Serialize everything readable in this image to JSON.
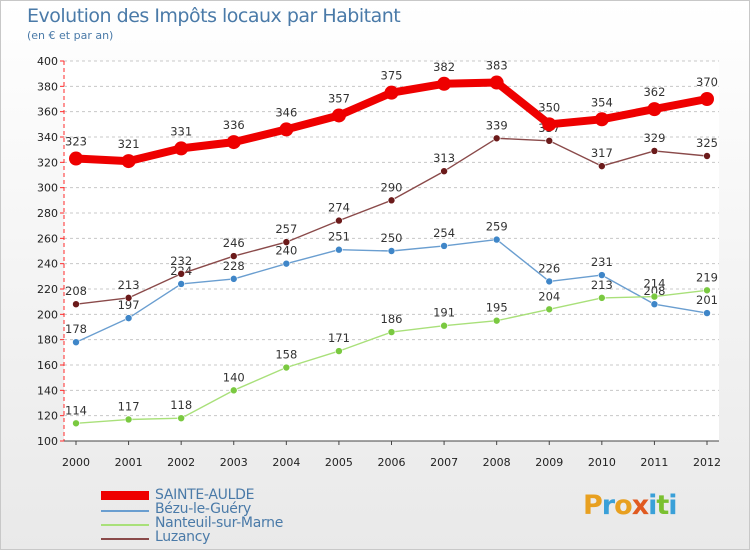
{
  "header": {
    "title": "Evolution des Impôts locaux par Habitant",
    "subtitle": "(en € et par an)"
  },
  "logo": {
    "text": "Proxiti",
    "colors": [
      "#e8b020",
      "#3aa0d8",
      "#e05a20",
      "#7ac030"
    ]
  },
  "chart_data": {
    "type": "line",
    "title": "Evolution des Impôts locaux par Habitant",
    "subtitle": "(en € et par an)",
    "xlabel": "",
    "ylabel": "",
    "x": [
      2000,
      2001,
      2002,
      2003,
      2004,
      2005,
      2006,
      2007,
      2008,
      2009,
      2010,
      2011,
      2012
    ],
    "ylim": [
      100,
      400
    ],
    "yticks": [
      100,
      120,
      140,
      160,
      180,
      200,
      220,
      240,
      260,
      280,
      300,
      320,
      340,
      360,
      380,
      400
    ],
    "grid": "horizontal dashed",
    "legend_position": "bottom-left",
    "series": [
      {
        "name": "SAINTE-AULDE",
        "color": "#ee0000",
        "highlight": true,
        "values": [
          323,
          321,
          331,
          336,
          346,
          357,
          375,
          382,
          383,
          350,
          354,
          362,
          370
        ]
      },
      {
        "name": "Bézu-le-Guéry",
        "color": "#6a9ed0",
        "marker": "#3f86c8",
        "values": [
          178,
          197,
          224,
          228,
          240,
          251,
          250,
          254,
          259,
          226,
          231,
          208,
          201
        ]
      },
      {
        "name": "Nanteuil-sur-Marne",
        "color": "#a9e07a",
        "marker": "#7ac940",
        "values": [
          114,
          117,
          118,
          140,
          158,
          171,
          186,
          191,
          195,
          204,
          213,
          214,
          219
        ]
      },
      {
        "name": "Luzancy",
        "color": "#8a4a4a",
        "marker": "#6b1a1a",
        "values": [
          208,
          213,
          232,
          246,
          257,
          274,
          290,
          313,
          339,
          337,
          317,
          329,
          325
        ]
      }
    ]
  }
}
